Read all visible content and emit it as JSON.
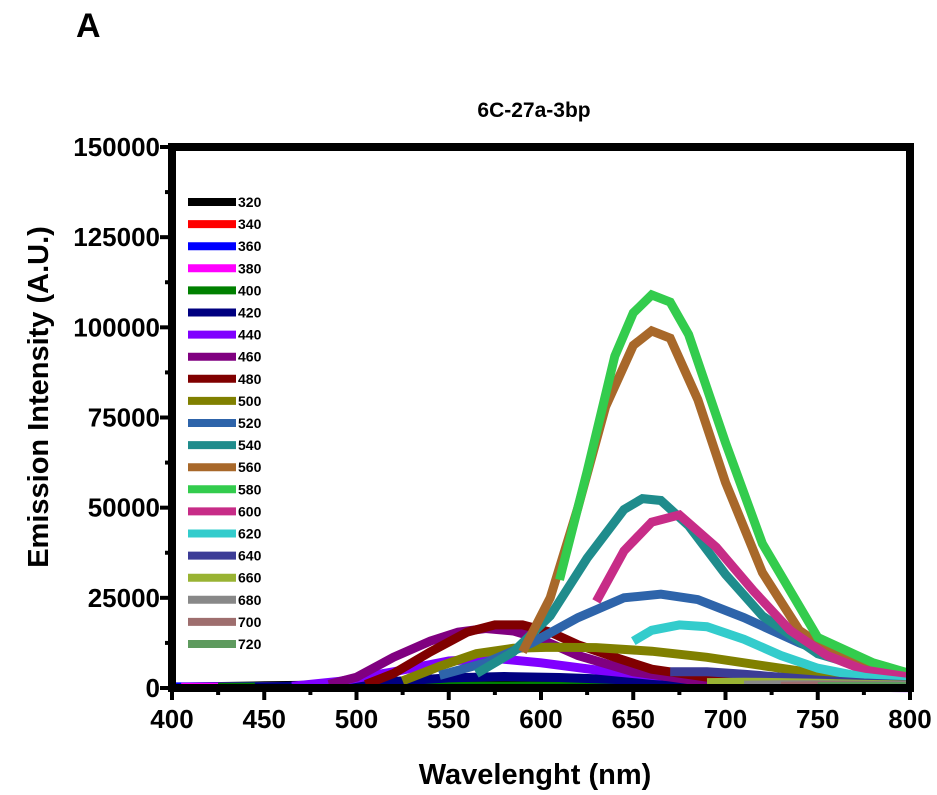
{
  "panel_label": "A",
  "chart_data": {
    "type": "line",
    "title": "6C-27a-3bp",
    "xlabel": "Wavelenght (nm)",
    "ylabel": "Emission Intensity (A.U.)",
    "xlim": [
      400,
      800
    ],
    "ylim": [
      0,
      150000
    ],
    "xticks": [
      400,
      450,
      500,
      550,
      600,
      650,
      700,
      750,
      800
    ],
    "yticks": [
      0,
      25000,
      50000,
      75000,
      100000,
      125000,
      150000
    ],
    "xtick_labels": [
      "400",
      "450",
      "500",
      "550",
      "600",
      "650",
      "700",
      "750",
      "800"
    ],
    "ytick_labels": [
      "0",
      "25000",
      "50000",
      "75000",
      "100000",
      "125000",
      "150000"
    ],
    "grid": false,
    "legend_position": "top-left",
    "series": [
      {
        "name": "320",
        "color": "#000000",
        "x": [
          400,
          450,
          500,
          550,
          600,
          650,
          700,
          750,
          800
        ],
        "y": [
          200,
          600,
          900,
          900,
          700,
          500,
          400,
          300,
          200
        ]
      },
      {
        "name": "340",
        "color": "#ff0000",
        "x": [
          410,
          450,
          500,
          550,
          600,
          650,
          700,
          750,
          800
        ],
        "y": [
          200,
          300,
          400,
          400,
          400,
          800,
          600,
          400,
          200
        ]
      },
      {
        "name": "360",
        "color": "#0000ff",
        "x": [
          400,
          450,
          500,
          550,
          600,
          650,
          700,
          750,
          800
        ],
        "y": [
          300,
          400,
          400,
          300,
          300,
          300,
          200,
          200,
          100
        ]
      },
      {
        "name": "380",
        "color": "#ff00ff",
        "x": [
          405,
          450,
          500,
          550,
          600,
          650,
          700,
          750,
          800
        ],
        "y": [
          200,
          300,
          400,
          400,
          400,
          300,
          300,
          200,
          100
        ]
      },
      {
        "name": "400",
        "color": "#008000",
        "x": [
          425,
          450,
          500,
          550,
          600,
          650,
          700,
          750,
          800
        ],
        "y": [
          200,
          300,
          400,
          500,
          500,
          500,
          500,
          400,
          300
        ]
      },
      {
        "name": "420",
        "color": "#000080",
        "x": [
          445,
          480,
          520,
          550,
          580,
          610,
          650,
          700,
          750,
          800
        ],
        "y": [
          200,
          700,
          1800,
          2800,
          3200,
          2900,
          2200,
          1500,
          900,
          500
        ]
      },
      {
        "name": "440",
        "color": "#8000ff",
        "x": [
          465,
          490,
          520,
          550,
          575,
          600,
          630,
          660,
          700,
          750,
          800
        ],
        "y": [
          500,
          1800,
          4500,
          7500,
          8200,
          7000,
          5000,
          3500,
          2200,
          1200,
          600
        ]
      },
      {
        "name": "460",
        "color": "#800080",
        "x": [
          485,
          500,
          520,
          540,
          555,
          570,
          585,
          600,
          620,
          650,
          680,
          720,
          760,
          800
        ],
        "y": [
          1000,
          3000,
          8500,
          13000,
          15500,
          16500,
          15800,
          13500,
          9000,
          4500,
          2300,
          1200,
          700,
          400
        ]
      },
      {
        "name": "480",
        "color": "#800000",
        "x": [
          505,
          520,
          540,
          560,
          575,
          590,
          605,
          620,
          640,
          660,
          690,
          730,
          770,
          800
        ],
        "y": [
          1000,
          4000,
          10000,
          15500,
          17500,
          17500,
          15500,
          12000,
          8500,
          5200,
          3000,
          1500,
          800,
          500
        ]
      },
      {
        "name": "500",
        "color": "#808000",
        "x": [
          525,
          545,
          565,
          585,
          605,
          630,
          660,
          690,
          720,
          750,
          780,
          800
        ],
        "y": [
          2000,
          6000,
          9500,
          11000,
          11300,
          11200,
          10200,
          8500,
          6200,
          4000,
          2500,
          1800
        ]
      },
      {
        "name": "520",
        "color": "#2e64aa",
        "x": [
          545,
          570,
          595,
          620,
          645,
          665,
          685,
          710,
          740,
          770,
          800
        ],
        "y": [
          3500,
          7000,
          12500,
          19500,
          25000,
          26000,
          24500,
          19500,
          12500,
          6500,
          3500
        ]
      },
      {
        "name": "540",
        "color": "#1f8c8c",
        "x": [
          565,
          585,
          605,
          625,
          645,
          655,
          665,
          680,
          700,
          720,
          750,
          780,
          800
        ],
        "y": [
          4000,
          10000,
          20000,
          36000,
          49500,
          52500,
          52000,
          45000,
          31500,
          20000,
          9500,
          5000,
          3000
        ]
      },
      {
        "name": "560",
        "color": "#a8682a",
        "x": [
          590,
          605,
          620,
          635,
          650,
          660,
          670,
          685,
          700,
          720,
          740,
          760,
          780,
          800
        ],
        "y": [
          10000,
          25000,
          50000,
          78000,
          95000,
          99000,
          97000,
          80000,
          57000,
          32000,
          16000,
          9000,
          5000,
          3000
        ]
      },
      {
        "name": "580",
        "color": "#33cc4d",
        "x": [
          610,
          625,
          640,
          650,
          660,
          670,
          680,
          700,
          720,
          750,
          780,
          800
        ],
        "y": [
          30000,
          60000,
          92000,
          104000,
          109000,
          107000,
          98000,
          68000,
          40000,
          14000,
          7000,
          4000
        ]
      },
      {
        "name": "600",
        "color": "#c72c87",
        "x": [
          630,
          645,
          660,
          675,
          695,
          715,
          735,
          755,
          775,
          800
        ],
        "y": [
          24000,
          38000,
          46000,
          48000,
          39000,
          27000,
          16000,
          9000,
          5000,
          3000
        ]
      },
      {
        "name": "620",
        "color": "#33cccc",
        "x": [
          650,
          660,
          675,
          690,
          710,
          730,
          750,
          775,
          800
        ],
        "y": [
          13000,
          16000,
          17500,
          17000,
          13500,
          9000,
          5500,
          3000,
          1500
        ]
      },
      {
        "name": "640",
        "color": "#3c3c96",
        "x": [
          670,
          690,
          710,
          730,
          750,
          775,
          800
        ],
        "y": [
          4500,
          4500,
          3800,
          3000,
          2200,
          1400,
          900
        ]
      },
      {
        "name": "660",
        "color": "#99b333",
        "x": [
          690,
          710,
          730,
          750,
          775,
          800
        ],
        "y": [
          1500,
          1600,
          1500,
          1300,
          1000,
          800
        ]
      },
      {
        "name": "680",
        "color": "#888888",
        "x": [
          710,
          730,
          750,
          775,
          800
        ],
        "y": [
          800,
          900,
          900,
          800,
          700
        ]
      },
      {
        "name": "700",
        "color": "#9e6e6e",
        "x": [
          730,
          750,
          775,
          800
        ],
        "y": [
          500,
          600,
          600,
          500
        ]
      },
      {
        "name": "720",
        "color": "#5e9a5e",
        "x": [
          750,
          775,
          800
        ],
        "y": [
          400,
          500,
          400
        ]
      }
    ]
  }
}
